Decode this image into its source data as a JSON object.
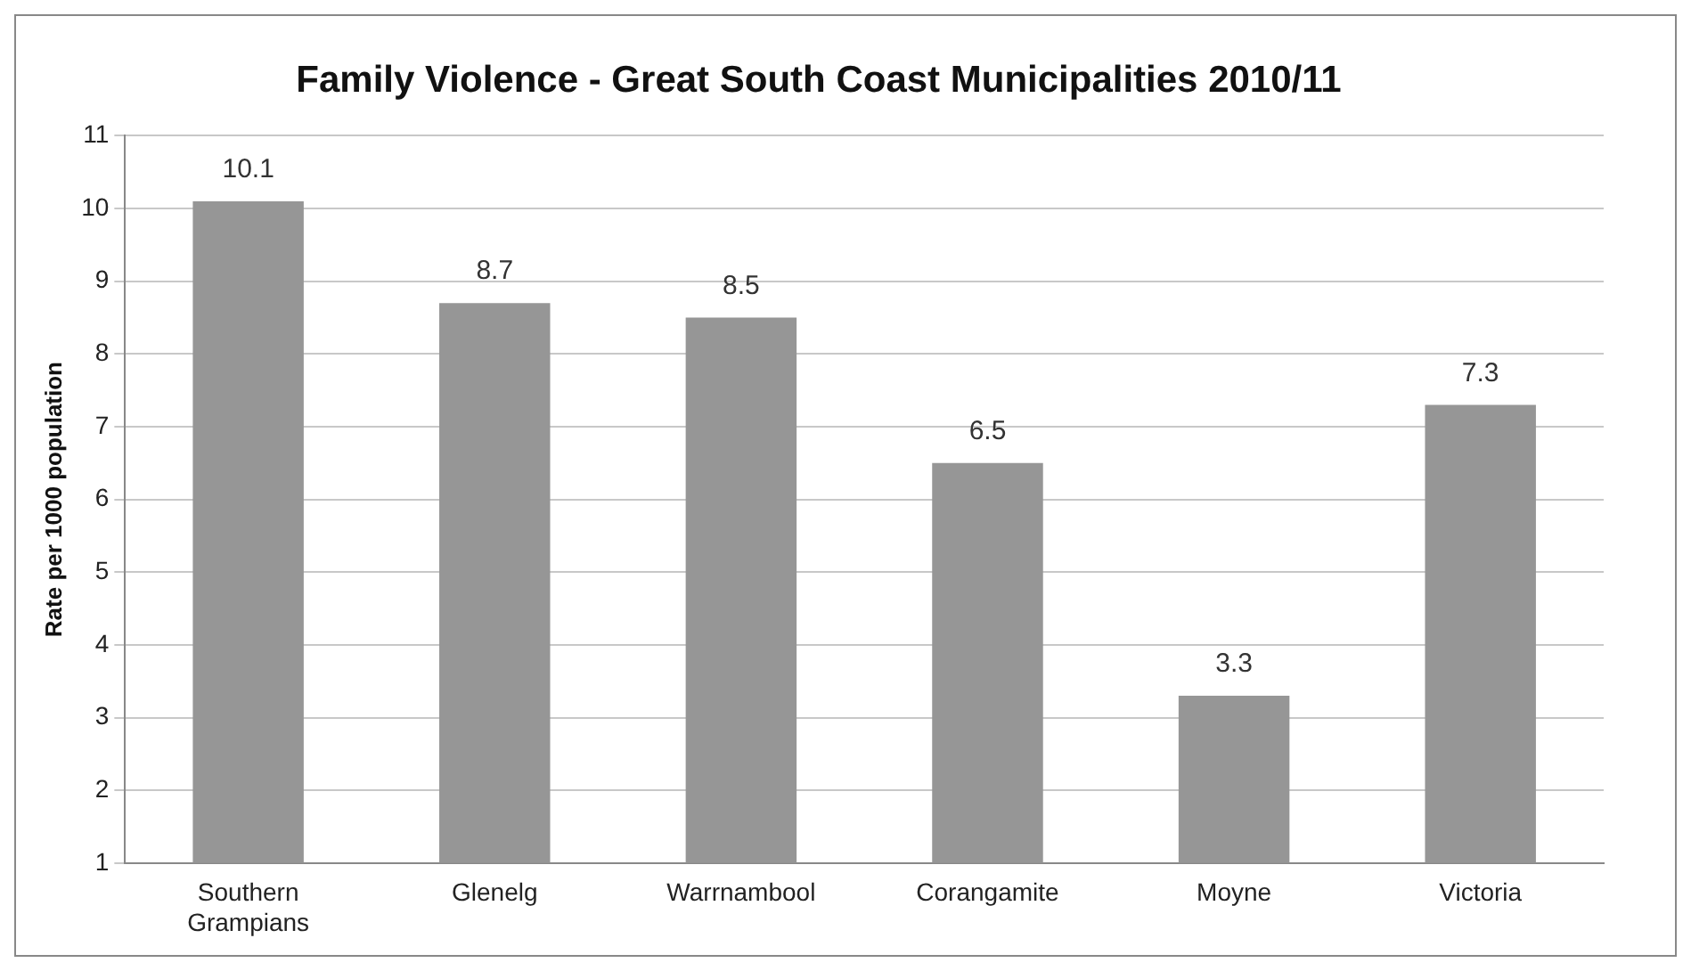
{
  "chart_data": {
    "type": "bar",
    "title": "Family Violence - Great South Coast Municipalities 2010/11",
    "ylabel": "Rate per 1000 population",
    "categories": [
      "Southern Grampians",
      "Glenelg",
      "Warrnambool",
      "Corangamite",
      "Moyne",
      "Victoria"
    ],
    "values": [
      10.1,
      8.7,
      8.5,
      6.5,
      3.3,
      7.3
    ],
    "color": "#969696",
    "ylim": [
      1,
      11
    ],
    "yticks": [
      1,
      2,
      3,
      4,
      5,
      6,
      7,
      8,
      9,
      10,
      11
    ],
    "grid": "y",
    "legend": false,
    "data_labels": true
  }
}
